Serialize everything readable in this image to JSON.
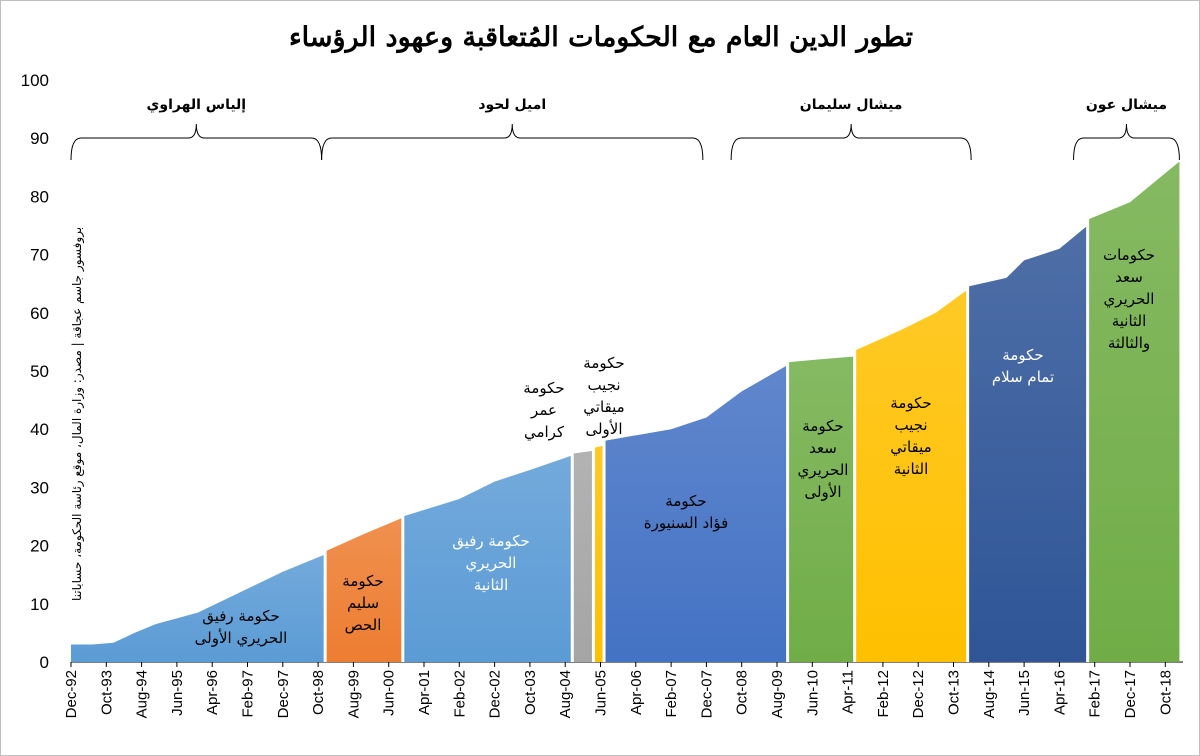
{
  "chart_data": {
    "type": "area",
    "title": "تطور الدين العام مع الحكومات المُتعاقبة وعهود الرؤساء",
    "source_note": "بروفسور جاسم عجاقة | مصدر: وزارة المال، موقع رئاسة الحكومة، حساباتنا",
    "xlabel": "",
    "ylabel": "",
    "ylim": [
      0,
      100
    ],
    "yticks": [
      "0",
      "10",
      "20",
      "30",
      "40",
      "50",
      "60",
      "70",
      "80",
      "90",
      "100"
    ],
    "x_unit": "months since Dec-92",
    "xticks": [
      "Dec-92",
      "Oct-93",
      "Aug-94",
      "Jun-95",
      "Apr-96",
      "Feb-97",
      "Dec-97",
      "Oct-98",
      "Aug-99",
      "Jun-00",
      "Apr-01",
      "Feb-02",
      "Dec-02",
      "Oct-03",
      "Aug-04",
      "Jun-05",
      "Apr-06",
      "Feb-07",
      "Dec-07",
      "Oct-08",
      "Aug-09",
      "Jun-10",
      "Apr-11",
      "Feb-12",
      "Dec-12",
      "Oct-13",
      "Aug-14",
      "Jun-15",
      "Apr-16",
      "Feb-17",
      "Dec-17",
      "Oct-18"
    ],
    "grid": false,
    "series": [
      {
        "name": "حكومة رفيق الحريري الأولى",
        "label": [
          "حكومة رفيق",
          "الحريري الأولى"
        ],
        "color": "#5b9bd5",
        "label_color": "#000000",
        "points": [
          [
            0,
            3
          ],
          [
            6,
            3
          ],
          [
            12,
            3.3
          ],
          [
            18,
            5
          ],
          [
            24,
            6.5
          ],
          [
            36,
            8.5
          ],
          [
            48,
            12
          ],
          [
            60,
            15.5
          ],
          [
            72,
            18.5
          ]
        ]
      },
      {
        "name": "حكومة سليم الحص",
        "label": [
          "حكومة",
          "سليم",
          "الحص"
        ],
        "color": "#ed7d31",
        "label_color": "#000000",
        "points": [
          [
            72,
            19
          ],
          [
            83,
            22
          ],
          [
            94,
            24.8
          ]
        ]
      },
      {
        "name": "حكومة رفيق الحريري الثانية",
        "label": [
          "حكومة رفيق",
          "الحريري",
          "الثانية"
        ],
        "color": "#5b9bd5",
        "label_color": "#ffffff",
        "points": [
          [
            94,
            25
          ],
          [
            110,
            28
          ],
          [
            120,
            31
          ],
          [
            130,
            33
          ],
          [
            142,
            35.5
          ]
        ]
      },
      {
        "name": "حكومة عمر كرامي",
        "label": [
          "حكومة",
          "عمر",
          "كرامي"
        ],
        "color": "#a5a5a5",
        "label_color": "#000000",
        "points": [
          [
            142,
            35.8
          ],
          [
            148,
            36.3
          ]
        ]
      },
      {
        "name": "حكومة نجيب ميقاتي الأولى",
        "label": [
          "حكومة",
          "نجيب",
          "ميقاتي",
          "الأولى"
        ],
        "color": "#ffc000",
        "label_color": "#000000",
        "points": [
          [
            148,
            36.8
          ],
          [
            151,
            37.2
          ]
        ]
      },
      {
        "name": "حكومة فؤاد السنيورة",
        "label": [
          "حكومة",
          "فؤاد السنيورة"
        ],
        "color": "#4472c4",
        "label_color": "#000000",
        "points": [
          [
            151,
            38
          ],
          [
            170,
            40
          ],
          [
            180,
            42
          ],
          [
            190,
            46.5
          ],
          [
            203,
            51
          ]
        ]
      },
      {
        "name": "حكومة سعد الحريري الأولى",
        "label": [
          "حكومة",
          "سعد",
          "الحريري",
          "الأولى"
        ],
        "color": "#70ad47",
        "label_color": "#000000",
        "points": [
          [
            203,
            51.5
          ],
          [
            212,
            52
          ],
          [
            222,
            52.5
          ]
        ]
      },
      {
        "name": "حكومة نجيب ميقاتي الثانية",
        "label": [
          "حكومة",
          "نجيب",
          "ميقاتي",
          "الثانية"
        ],
        "color": "#ffc000",
        "label_color": "#000000",
        "points": [
          [
            222,
            53.5
          ],
          [
            235,
            57
          ],
          [
            245,
            60
          ],
          [
            254,
            64
          ]
        ]
      },
      {
        "name": "حكومة تمام سلام",
        "label": [
          "حكومة",
          "تمام سلام"
        ],
        "color": "#2f5597",
        "label_color": "#ffffff",
        "points": [
          [
            254,
            64.5
          ],
          [
            265,
            66
          ],
          [
            270,
            69
          ],
          [
            280,
            71
          ],
          [
            288,
            75
          ]
        ]
      },
      {
        "name": "حكومات سعد الحريري الثانية والثالثة",
        "label": [
          "حكومات",
          "سعد",
          "الحريري",
          "الثانية",
          "والثالثة"
        ],
        "color": "#70ad47",
        "label_color": "#000000",
        "points": [
          [
            288,
            76
          ],
          [
            300,
            79
          ],
          [
            310,
            84
          ],
          [
            314,
            86
          ]
        ]
      }
    ],
    "presidents": [
      {
        "name": "إلياس الهراوي",
        "start": 0,
        "end": 71
      },
      {
        "name": "اميل لحود",
        "start": 71,
        "end": 179
      },
      {
        "name": "ميشال سليمان",
        "start": 187,
        "end": 255
      },
      {
        "name": "ميشال عون",
        "start": 284,
        "end": 314
      }
    ]
  }
}
